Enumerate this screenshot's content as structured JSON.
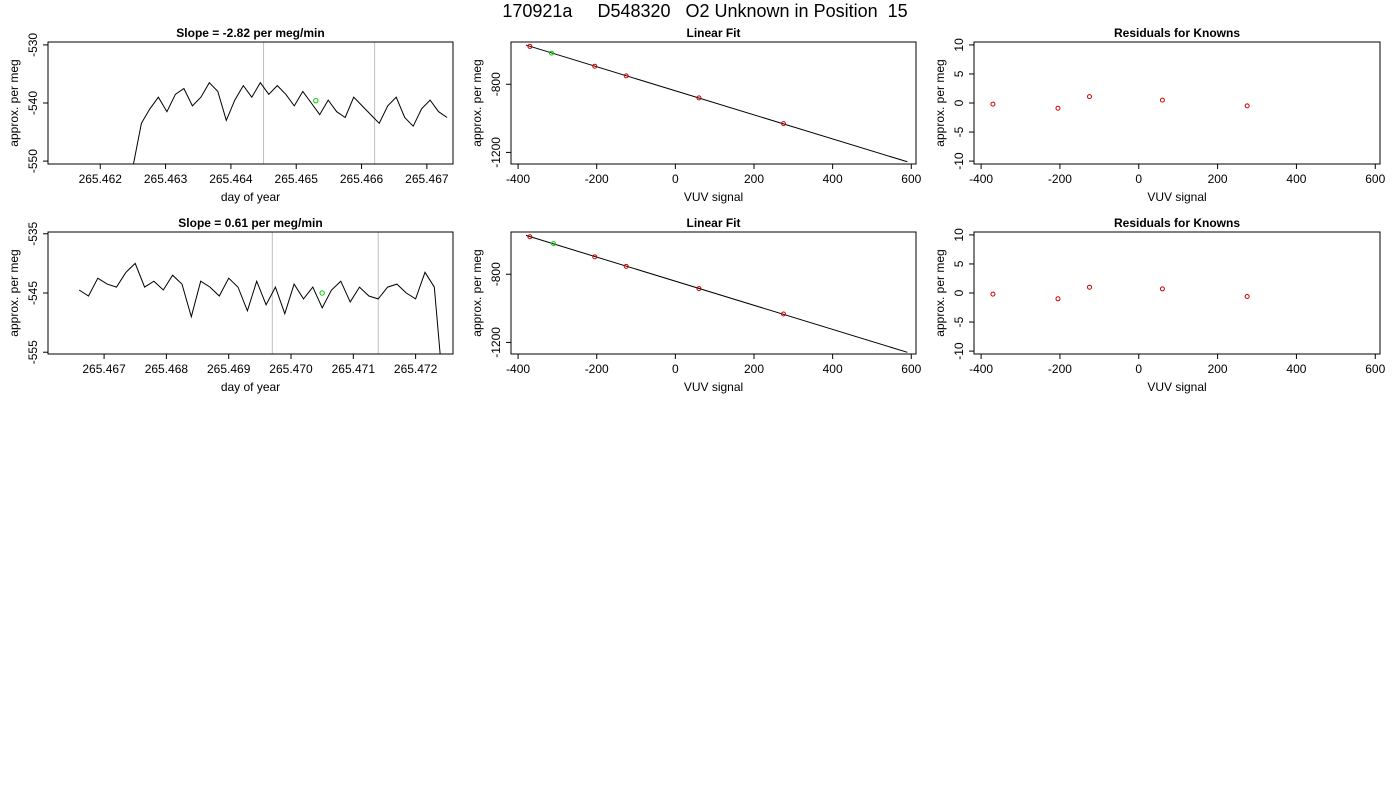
{
  "figure": {
    "title": "170921a     D548320   O2 Unknown in Position  15"
  },
  "chart_data": [
    {
      "id": "r1-series",
      "type": "line",
      "title": "Slope =  -2.82  per meg/min",
      "xlabel": "day of year",
      "ylabel": "approx. per meg",
      "xlim": [
        265.4612,
        265.4674
      ],
      "ylim": [
        -550.5,
        -529.5
      ],
      "xticks": [
        265.462,
        265.463,
        265.464,
        265.465,
        265.466,
        265.467
      ],
      "xtick_labels": [
        "265.462",
        "265.463",
        "265.464",
        "265.465",
        "265.466",
        "265.467"
      ],
      "yticks": [
        -550,
        -540,
        -530
      ],
      "ytick_labels": [
        "-550",
        "-540",
        "-530"
      ],
      "vlines": [
        265.4645,
        265.4662
      ],
      "marker": {
        "x": 265.4653,
        "y": -539.6
      },
      "series": [
        {
          "x": [
            265.4625,
            265.46263,
            265.46276,
            265.46289,
            265.46302,
            265.46315,
            265.46328,
            265.46341,
            265.46354,
            265.46367,
            265.4638,
            265.46393,
            265.46406,
            265.46419,
            265.46432,
            265.46445,
            265.46458,
            265.46471,
            265.46484,
            265.46497,
            265.4651,
            265.46523,
            265.46536,
            265.46549,
            265.46562,
            265.46575,
            265.46588,
            265.46601,
            265.46614,
            265.46627,
            265.4664,
            265.46653,
            265.46666,
            265.46679,
            265.46692,
            265.46705,
            265.46718,
            265.46731
          ],
          "y": [
            -551.0,
            -543.5,
            -541.0,
            -539.0,
            -541.5,
            -538.5,
            -537.5,
            -540.5,
            -539.0,
            -536.5,
            -538.0,
            -543.0,
            -539.5,
            -537.0,
            -539.0,
            -536.5,
            -538.5,
            -537.0,
            -538.5,
            -540.5,
            -538.0,
            -540.0,
            -542.0,
            -539.5,
            -541.5,
            -542.5,
            -539.0,
            -540.5,
            -542.0,
            -543.5,
            -540.5,
            -539.0,
            -542.5,
            -544.0,
            -541.0,
            -539.5,
            -541.5,
            -542.5
          ]
        }
      ]
    },
    {
      "id": "r1-fit",
      "type": "scatter",
      "title": "Linear Fit",
      "xlabel": "VUV signal",
      "ylabel": "approx. per meg",
      "xlim": [
        -418,
        612
      ],
      "ylim": [
        -1268,
        -552
      ],
      "xticks": [
        -400,
        -200,
        0,
        200,
        400,
        600
      ],
      "xtick_labels": [
        "-400",
        "-200",
        "0",
        "200",
        "400",
        "600"
      ],
      "yticks": [
        -1200,
        -800
      ],
      "ytick_labels": [
        "-1200",
        "-800"
      ],
      "line": {
        "x": [
          -380,
          590
        ],
        "y": [
          -570,
          -1255
        ]
      },
      "points": {
        "x": [
          -370,
          -205,
          -125,
          60,
          275
        ],
        "y": [
          -578,
          -694,
          -751,
          -880,
          -1031
        ]
      },
      "unknown": {
        "x": [
          -315
        ],
        "y": [
          -617
        ]
      }
    },
    {
      "id": "r1-resid",
      "type": "scatter",
      "title": "Residuals for Knowns",
      "xlabel": "VUV signal",
      "ylabel": "approx. per meg",
      "xlim": [
        -418,
        612
      ],
      "ylim": [
        -10.5,
        10.5
      ],
      "xticks": [
        -400,
        -200,
        0,
        200,
        400,
        600
      ],
      "xtick_labels": [
        "-400",
        "-200",
        "0",
        "200",
        "400",
        "600"
      ],
      "yticks": [
        -10,
        -5,
        0,
        5,
        10
      ],
      "ytick_labels": [
        "-10",
        "-5",
        "0",
        "5",
        "10"
      ],
      "points": {
        "x": [
          -370,
          -205,
          -125,
          60,
          275
        ],
        "y": [
          -0.2,
          -0.9,
          1.1,
          0.5,
          -0.5
        ]
      }
    },
    {
      "id": "r2-series",
      "type": "line",
      "title": "Slope =  0.61  per meg/min",
      "xlabel": "day of year",
      "ylabel": "approx. per meg",
      "xlim": [
        265.4661,
        265.4726
      ],
      "ylim": [
        -555.3,
        -534.7
      ],
      "xticks": [
        265.467,
        265.468,
        265.469,
        265.47,
        265.471,
        265.472
      ],
      "xtick_labels": [
        "265.467",
        "265.468",
        "265.469",
        "265.470",
        "265.471",
        "265.472"
      ],
      "yticks": [
        -555,
        -545,
        -535
      ],
      "ytick_labels": [
        "-555",
        "-545",
        "-535"
      ],
      "vlines": [
        265.4697,
        265.4714
      ],
      "marker": {
        "x": 265.4705,
        "y": -545.0
      },
      "series": [
        {
          "x": [
            265.4666,
            265.46675,
            265.4669,
            265.46705,
            265.4672,
            265.46735,
            265.4675,
            265.46765,
            265.4678,
            265.46795,
            265.4681,
            265.46825,
            265.4684,
            265.46855,
            265.4687,
            265.46885,
            265.469,
            265.46915,
            265.4693,
            265.46945,
            265.4696,
            265.46975,
            265.4699,
            265.47005,
            265.4702,
            265.47035,
            265.4705,
            265.47065,
            265.4708,
            265.47095,
            265.4711,
            265.47125,
            265.4714,
            265.47155,
            265.4717,
            265.47185,
            265.472,
            265.47215,
            265.4723,
            265.4724
          ],
          "y": [
            -544.5,
            -545.5,
            -542.5,
            -543.5,
            -544.0,
            -541.5,
            -540.0,
            -544.0,
            -543.0,
            -544.5,
            -542.0,
            -543.5,
            -549.0,
            -543.0,
            -544.0,
            -545.5,
            -542.5,
            -544.0,
            -548.0,
            -543.0,
            -547.0,
            -544.0,
            -548.5,
            -543.5,
            -546.0,
            -544.0,
            -547.5,
            -544.5,
            -543.0,
            -546.5,
            -544.0,
            -545.5,
            -546.0,
            -544.0,
            -543.5,
            -545.0,
            -546.0,
            -541.5,
            -544.0,
            -556.0
          ]
        }
      ]
    },
    {
      "id": "r2-fit",
      "type": "scatter",
      "title": "Linear Fit",
      "xlabel": "VUV signal",
      "ylabel": "approx. per meg",
      "xlim": [
        -418,
        612
      ],
      "ylim": [
        -1268,
        -552
      ],
      "xticks": [
        -400,
        -200,
        0,
        200,
        400,
        600
      ],
      "xtick_labels": [
        "-400",
        "-200",
        "0",
        "200",
        "400",
        "600"
      ],
      "yticks": [
        -1200,
        -800
      ],
      "ytick_labels": [
        "-1200",
        "-800"
      ],
      "line": {
        "x": [
          -380,
          590
        ],
        "y": [
          -572,
          -1258
        ]
      },
      "points": {
        "x": [
          -370,
          -205,
          -125,
          60,
          275
        ],
        "y": [
          -580,
          -698,
          -754,
          -884,
          -1033
        ]
      },
      "unknown": {
        "x": [
          -310
        ],
        "y": [
          -620
        ]
      }
    },
    {
      "id": "r2-resid",
      "type": "scatter",
      "title": "Residuals for Knowns",
      "xlabel": "VUV signal",
      "ylabel": "approx. per meg",
      "xlim": [
        -418,
        612
      ],
      "ylim": [
        -10.5,
        10.5
      ],
      "xticks": [
        -400,
        -200,
        0,
        200,
        400,
        600
      ],
      "xtick_labels": [
        "-400",
        "-200",
        "0",
        "200",
        "400",
        "600"
      ],
      "yticks": [
        -10,
        -5,
        0,
        5,
        10
      ],
      "ytick_labels": [
        "-10",
        "-5",
        "0",
        "5",
        "10"
      ],
      "points": {
        "x": [
          -370,
          -205,
          -125,
          60,
          275
        ],
        "y": [
          -0.2,
          -1.0,
          1.0,
          0.7,
          -0.6
        ]
      }
    }
  ],
  "colors": {
    "line": "#000000",
    "box": "#000000",
    "vline": "#bebebe",
    "known_point": "#cd0000",
    "unknown_point": "#00cd00"
  }
}
